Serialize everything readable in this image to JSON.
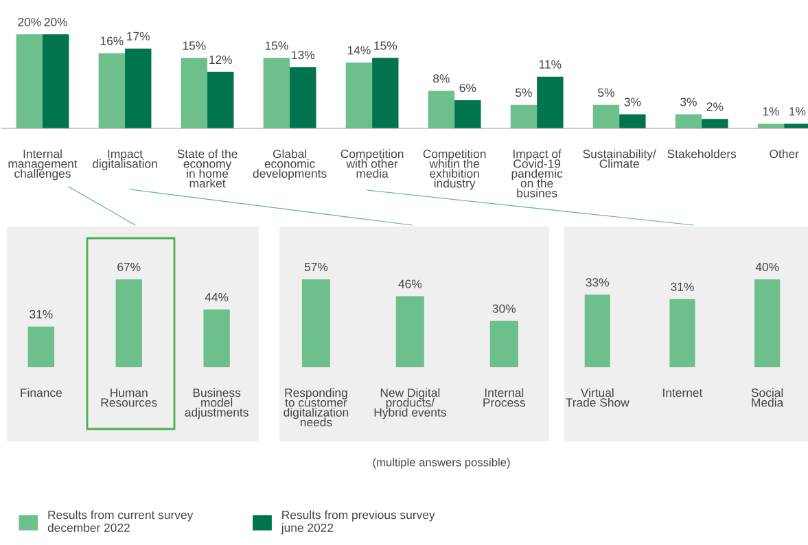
{
  "chart_data": [
    {
      "type": "bar",
      "categories": [
        "Internal\nmanagement\nchallenges",
        "Impact\ndigitalisation",
        "State of the\neconomy\nin home\nmarket",
        "Glabal\neconomic\ndevelopments",
        "Competition\nwith other\nmedia",
        "Competition\nwhitin the\nexhibition\nindustry",
        "Impact of\nCovid-19\npandemic\non the\nbusines",
        "Sustainability/\nClimate",
        "Stakeholders",
        "Other"
      ],
      "series": [
        {
          "name": "Results from current survey\ndecember 2022",
          "color": "#6dbf8c",
          "values": [
            20,
            16,
            15,
            15,
            14,
            8,
            5,
            5,
            3,
            1
          ],
          "value_labels": [
            "20%",
            "16%",
            "15%",
            "15%",
            "14%",
            "8%",
            "5%",
            "5%",
            "3%",
            "1%"
          ]
        },
        {
          "name": "Results from previous survey\njune 2022",
          "color": "#00734f",
          "values": [
            20,
            17,
            12,
            13,
            15,
            6,
            11,
            3,
            2,
            1
          ],
          "value_labels": [
            "20%",
            "17%",
            "12%",
            "13%",
            "15%",
            "6%",
            "11%",
            "3%",
            "2%",
            "1%"
          ]
        }
      ],
      "legend": "bottom",
      "annotations": [
        "(multiple answers possible)"
      ]
    },
    {
      "type": "bar",
      "categories": [
        "Finance",
        "Human\nResources",
        "Business\nmodel\nadjustments"
      ],
      "values": [
        31,
        67,
        44
      ],
      "value_labels": [
        "31%",
        "67%",
        "44%"
      ],
      "color": "#6dbf8c"
    },
    {
      "type": "bar",
      "categories": [
        "Responding\nto customer\ndigitalization\nneeds",
        "New Digital\nproducts/\nHybrid events",
        "Internal\nProcess"
      ],
      "values": [
        57,
        46,
        30
      ],
      "value_labels": [
        "57%",
        "46%",
        "30%"
      ],
      "color": "#6dbf8c"
    },
    {
      "type": "bar",
      "categories": [
        "Virtual\nTrade Show",
        "Internet",
        "Social\nMedia"
      ],
      "values": [
        33,
        31,
        40
      ],
      "value_labels": [
        "33%",
        "31%",
        "40%"
      ],
      "color": "#6dbf8c"
    }
  ]
}
